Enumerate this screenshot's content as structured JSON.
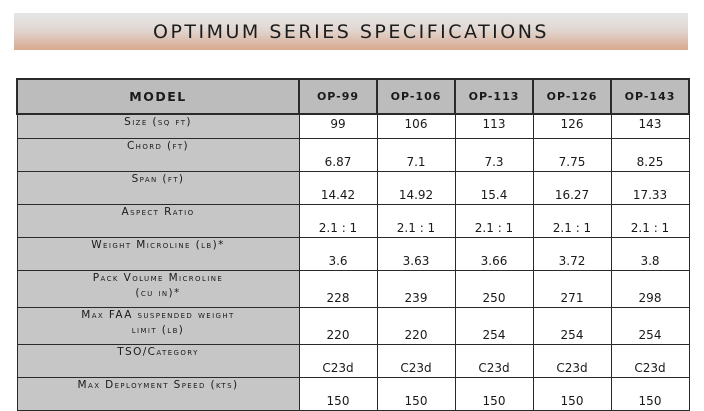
{
  "title": "OPTIMUM SERIES SPECIFICATIONS",
  "table": {
    "header_label": "MODEL",
    "models": [
      "OP-99",
      "OP-106",
      "OP-113",
      "OP-126",
      "OP-143"
    ],
    "rows": [
      {
        "label_lines": [
          "Size (sq ft)"
        ],
        "values": [
          "99",
          "106",
          "113",
          "126",
          "143"
        ]
      },
      {
        "label_lines": [
          "Chord (ft)"
        ],
        "values": [
          "6.87",
          "7.1",
          "7.3",
          "7.75",
          "8.25"
        ]
      },
      {
        "label_lines": [
          "Span (ft)"
        ],
        "values": [
          "14.42",
          "14.92",
          "15.4",
          "16.27",
          "17.33"
        ]
      },
      {
        "label_lines": [
          "Aspect Ratio"
        ],
        "values": [
          "2.1 : 1",
          "2.1 : 1",
          "2.1 : 1",
          "2.1 : 1",
          "2.1 : 1"
        ]
      },
      {
        "label_lines": [
          "Weight Microline (lb)*"
        ],
        "values": [
          "3.6",
          "3.63",
          "3.66",
          "3.72",
          "3.8"
        ]
      },
      {
        "label_lines": [
          "Pack Volume Microline",
          "(cu in)*"
        ],
        "values": [
          "228",
          "239",
          "250",
          "271",
          "298"
        ]
      },
      {
        "label_lines": [
          "Max FAA suspended weight",
          "limit (lb)"
        ],
        "values": [
          "220",
          "220",
          "254",
          "254",
          "254"
        ]
      },
      {
        "label_lines": [
          "TSO/Category"
        ],
        "values": [
          "C23d",
          "C23d",
          "C23d",
          "C23d",
          "C23d"
        ]
      },
      {
        "label_lines": [
          "Max Deployment Speed (kts)"
        ],
        "values": [
          "150",
          "150",
          "150",
          "150",
          "150"
        ]
      }
    ]
  }
}
